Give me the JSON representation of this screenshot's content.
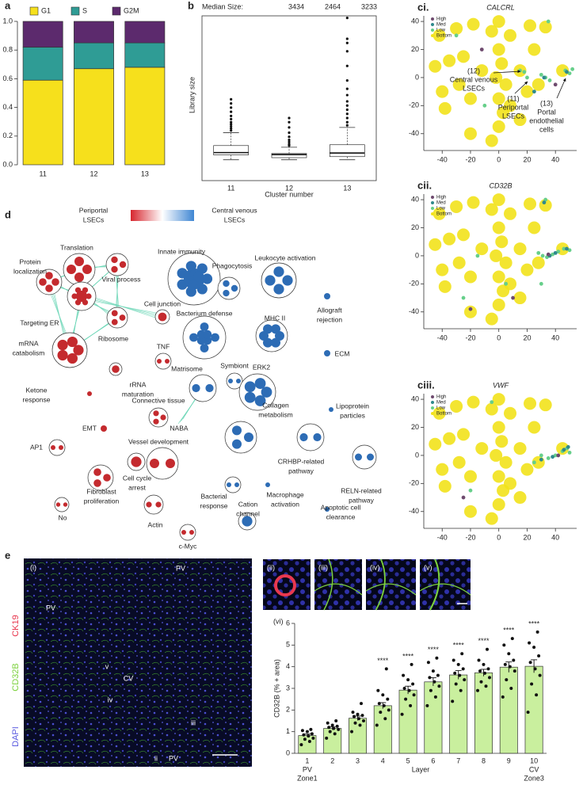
{
  "chart_data": [
    {
      "type": "stacked_bar",
      "panel_label": "a",
      "categories": [
        "11",
        "12",
        "13"
      ],
      "series": [
        {
          "name": "G1",
          "color": "#f6e01c",
          "values": [
            0.59,
            0.67,
            0.68
          ]
        },
        {
          "name": "S",
          "color": "#2f9c95",
          "values": [
            0.23,
            0.18,
            0.17
          ]
        },
        {
          "name": "G2M",
          "color": "#5c2a6d",
          "values": [
            0.18,
            0.15,
            0.15
          ]
        }
      ],
      "ylim": [
        0,
        1
      ],
      "yticks": [
        {
          "value": 0,
          "label": "0.0"
        },
        {
          "value": 0.2,
          "label": "0.2"
        },
        {
          "value": 0.4,
          "label": "0.4"
        },
        {
          "value": 0.6,
          "label": "0.6"
        },
        {
          "value": 0.8,
          "label": "0.8"
        },
        {
          "value": 1,
          "label": "1.0"
        }
      ]
    },
    {
      "type": "box",
      "panel_label": "b",
      "title": "Median Size:",
      "categories": [
        "11",
        "12",
        "13"
      ],
      "medians": [
        3434,
        2464,
        3233
      ],
      "q1": [
        2300,
        1000,
        1500
      ],
      "q3": [
        6800,
        3000,
        7200
      ],
      "whisker_low": [
        0,
        0,
        0
      ],
      "whisker_high": [
        13000,
        6000,
        15500
      ],
      "outliers": [
        [
          14000,
          15000,
          16000,
          17000,
          18000,
          19500,
          21000,
          23000,
          25000,
          27000,
          29000
        ],
        [
          6800,
          7500,
          8500,
          9500,
          11000,
          13000,
          15500,
          18000,
          20000
        ],
        [
          16500,
          18000,
          20000,
          22000,
          24000,
          26000,
          28000,
          31000,
          34000,
          38000,
          45000,
          52000,
          56000,
          58000,
          68000
        ]
      ],
      "ylim": [
        -10000,
        69000
      ],
      "x_label": "Cluster number",
      "y_label": "Library size"
    },
    {
      "type": "scatter",
      "panel_label": "ci.",
      "title": "CALCRL",
      "xlim": [
        -53,
        55
      ],
      "ylim": [
        -52,
        44
      ],
      "xticks": [
        -40,
        -20,
        0,
        20,
        40
      ],
      "yticks": [
        -40,
        -20,
        0,
        20,
        40
      ],
      "series": [
        {
          "name": "High",
          "color": "#6e4a6e",
          "x": [
            -12,
            40
          ],
          "y": [
            20,
            -5
          ]
        },
        {
          "name": "Med",
          "color": "#2f8a8c",
          "x": [
            32,
            48,
            25
          ],
          "y": [
            0,
            4,
            -10
          ]
        },
        {
          "name": "Low",
          "color": "#66cf8a",
          "x": [
            15,
            18,
            30,
            33,
            36,
            47,
            50,
            52,
            -30,
            -10,
            35,
            20
          ],
          "y": [
            5,
            4,
            2,
            0,
            -2,
            5,
            3,
            6,
            30,
            -20,
            40,
            0
          ]
        },
        {
          "name": "Bottom",
          "color": "#f2e21b",
          "x": [
            -42,
            -30,
            -18,
            -5,
            8,
            22,
            33,
            -45,
            -35,
            -25,
            -12,
            -28,
            -40,
            -20,
            0,
            0,
            2,
            -2,
            5,
            0,
            3,
            0,
            -5,
            8,
            15,
            20,
            15,
            28,
            25,
            45,
            -38,
            -20
          ],
          "y": [
            30,
            35,
            38,
            33,
            30,
            37,
            36,
            8,
            12,
            15,
            5,
            -5,
            -10,
            -15,
            40,
            20,
            10,
            0,
            -5,
            -15,
            -25,
            -35,
            -45,
            -20,
            -30,
            -10,
            5,
            -5,
            20,
            5,
            -22,
            -40
          ]
        }
      ],
      "annotations": [
        [
          "(12)",
          "Central venous",
          "LSECs"
        ],
        [
          "(11)",
          "Periportal",
          "LSECs"
        ],
        [
          "(13)",
          "Portal",
          "endothelial",
          "cells"
        ]
      ]
    },
    {
      "type": "scatter",
      "panel_label": "cii.",
      "title": "CD32B",
      "xlim": [
        -53,
        55
      ],
      "ylim": [
        -52,
        44
      ],
      "xticks": [
        -40,
        -20,
        0,
        20,
        40
      ],
      "yticks": [
        -40,
        -20,
        0,
        20,
        40
      ],
      "series": [
        {
          "name": "High",
          "color": "#6e4a6e",
          "x": [
            35,
            -20,
            10
          ],
          "y": [
            1,
            -38,
            -30
          ]
        },
        {
          "name": "Med",
          "color": "#2f8a8c",
          "x": [
            36,
            40,
            48,
            32
          ],
          "y": [
            0,
            2,
            5,
            38
          ]
        },
        {
          "name": "Low",
          "color": "#66cf8a",
          "x": [
            28,
            31,
            34,
            38,
            42,
            46,
            50,
            33,
            -25,
            -15,
            5,
            30
          ],
          "y": [
            2,
            0,
            -1,
            1,
            3,
            5,
            4,
            40,
            -30,
            0,
            -20,
            -20
          ]
        },
        {
          "name": "Bottom",
          "color": "#f2e21b",
          "x": [
            -42,
            -30,
            -18,
            -5,
            8,
            22,
            33,
            -45,
            -35,
            -25,
            -12,
            -28,
            -40,
            -20,
            0,
            0,
            2,
            -2,
            5,
            0,
            3,
            0,
            -5,
            8,
            15,
            20,
            15,
            28,
            25,
            45,
            -38,
            -20
          ],
          "y": [
            30,
            35,
            38,
            33,
            30,
            37,
            36,
            8,
            12,
            15,
            5,
            -5,
            -10,
            -15,
            40,
            20,
            10,
            0,
            -5,
            -15,
            -25,
            -35,
            -45,
            -20,
            -30,
            -10,
            5,
            -5,
            20,
            5,
            -22,
            -40
          ]
        }
      ]
    },
    {
      "type": "scatter",
      "panel_label": "ciii.",
      "title": "VWF",
      "xlim": [
        -53,
        55
      ],
      "ylim": [
        -52,
        44
      ],
      "xticks": [
        -40,
        -20,
        0,
        20,
        40
      ],
      "yticks": [
        -40,
        -20,
        0,
        20,
        40
      ],
      "series": [
        {
          "name": "High",
          "color": "#6e4a6e",
          "x": [
            42,
            -25
          ],
          "y": [
            0,
            -30
          ]
        },
        {
          "name": "Med",
          "color": "#2f8a8c",
          "x": [
            38,
            46,
            49,
            30
          ],
          "y": [
            -1,
            4,
            6,
            -3
          ]
        },
        {
          "name": "Low",
          "color": "#66cf8a",
          "x": [
            30,
            35,
            40,
            45,
            48,
            50,
            25,
            -5,
            -20
          ],
          "y": [
            0,
            -2,
            0,
            3,
            5,
            2,
            -5,
            38,
            -25
          ]
        },
        {
          "name": "Bottom",
          "color": "#f2e21b",
          "x": [
            -42,
            -30,
            -18,
            -5,
            8,
            22,
            33,
            -45,
            -35,
            -25,
            -12,
            -28,
            -40,
            -20,
            0,
            0,
            2,
            -2,
            5,
            0,
            3,
            0,
            -5,
            8,
            15,
            20,
            15,
            28,
            25,
            45,
            -38,
            -20
          ],
          "y": [
            30,
            35,
            38,
            33,
            30,
            37,
            36,
            8,
            12,
            15,
            5,
            -5,
            -10,
            -15,
            40,
            20,
            10,
            0,
            -5,
            -15,
            -25,
            -35,
            -45,
            -20,
            -30,
            -10,
            5,
            -5,
            20,
            5,
            -22,
            -40
          ]
        }
      ]
    },
    {
      "type": "bar",
      "panel_label": "(vi)",
      "categories": [
        "1",
        "2",
        "3",
        "4",
        "5",
        "6",
        "7",
        "8",
        "9",
        "10"
      ],
      "values": [
        0.82,
        1.15,
        1.62,
        2.2,
        2.92,
        3.3,
        3.62,
        3.72,
        3.98,
        4.02
      ],
      "errors": [
        0.07,
        0.07,
        0.1,
        0.14,
        0.18,
        0.19,
        0.2,
        0.16,
        0.24,
        0.3
      ],
      "points": [
        [
          0.4,
          0.55,
          0.65,
          0.7,
          0.8,
          0.85,
          0.9,
          1.0,
          1.05,
          1.1
        ],
        [
          0.7,
          0.9,
          1.0,
          1.1,
          1.15,
          1.2,
          1.25,
          1.3,
          1.4,
          1.5
        ],
        [
          1.0,
          1.3,
          1.4,
          1.5,
          1.6,
          1.7,
          1.75,
          1.8,
          1.9,
          2.3
        ],
        [
          1.3,
          1.6,
          1.9,
          2.0,
          2.2,
          2.3,
          2.5,
          2.7,
          2.9,
          3.9
        ],
        [
          1.8,
          2.2,
          2.5,
          2.7,
          2.9,
          3.0,
          3.2,
          3.4,
          3.6,
          4.1
        ],
        [
          2.2,
          2.6,
          2.9,
          3.1,
          3.3,
          3.5,
          3.6,
          3.8,
          4.2,
          4.4
        ],
        [
          2.4,
          2.9,
          3.2,
          3.4,
          3.6,
          3.7,
          3.9,
          4.1,
          4.3,
          4.6
        ],
        [
          2.9,
          3.1,
          3.3,
          3.5,
          3.7,
          3.8,
          3.9,
          4.1,
          4.3,
          4.8
        ],
        [
          2.6,
          3.0,
          3.4,
          3.8,
          4.0,
          4.1,
          4.3,
          4.6,
          5.0,
          5.3
        ],
        [
          1.9,
          2.7,
          3.2,
          3.6,
          3.9,
          4.2,
          4.5,
          4.9,
          5.1,
          5.6
        ]
      ],
      "significance": [
        null,
        null,
        null,
        "****",
        "****",
        "****",
        "****",
        "****",
        "****",
        "****"
      ],
      "color": "#c9ef9e",
      "ylim": [
        0,
        6
      ],
      "yticks": [
        0,
        1,
        2,
        3,
        4,
        5,
        6
      ],
      "y_label": "CD32B (% + area)",
      "x_label": "Layer",
      "x_ends": [
        [
          "PV",
          "Zone1"
        ],
        [
          "CV",
          "Zone3"
        ]
      ]
    }
  ],
  "network": {
    "panel_label": "d",
    "legend": {
      "low_label": [
        "Periportal",
        "LSECs"
      ],
      "high_label": [
        "Central venous",
        "LSECs"
      ],
      "low_color": "#d7262e",
      "high_color": "#3f86d3"
    },
    "nodes": [
      {
        "label": [
          "Translation"
        ],
        "color": "#c42a2e"
      },
      {
        "label": [
          "Protein",
          "localization"
        ],
        "color": "#c42a2e"
      },
      {
        "label": [
          "Viral process"
        ],
        "color": "#c42a2e"
      },
      {
        "label": [
          "Cell junction"
        ],
        "color": "#c42a2e"
      },
      {
        "label": [
          "Targeting ER"
        ],
        "color": "#c42a2e"
      },
      {
        "label": [
          "Ribosome"
        ],
        "color": "#c42a2e"
      },
      {
        "label": [
          "mRNA",
          "catabolism"
        ],
        "color": "#c42a2e"
      },
      {
        "label": [
          "TNF"
        ],
        "color": "#c42a2e"
      },
      {
        "label": [
          "rRNA",
          "maturation"
        ],
        "color": "#c42a2e"
      },
      {
        "label": [
          "Innate immunity"
        ],
        "color": "#2d6cb5"
      },
      {
        "label": [
          "Phagocytosis"
        ],
        "color": "#2d6cb5"
      },
      {
        "label": [
          "Leukocyte activation"
        ],
        "color": "#2d6cb5"
      },
      {
        "label": [
          "Allograft",
          "rejection"
        ],
        "color": "#2d6cb5"
      },
      {
        "label": [
          "Bacterium defense"
        ],
        "color": "#2d6cb5"
      },
      {
        "label": [
          "MHC II"
        ],
        "color": "#2d6cb5"
      },
      {
        "label": [
          "ECM"
        ],
        "color": "#2d6cb5"
      },
      {
        "label": [
          "Matrisome"
        ],
        "color": "#2d6cb5"
      },
      {
        "label": [
          "Symbiont"
        ],
        "color": "#2d6cb5"
      },
      {
        "label": [
          "ERK2"
        ],
        "color": "#2d6cb5"
      },
      {
        "label": [
          "Ketone",
          "response"
        ],
        "color": "#c42a2e"
      },
      {
        "label": [
          "Connective tissue"
        ],
        "color": "#c42a2e"
      },
      {
        "label": [
          "EMT"
        ],
        "color": "#c42a2e"
      },
      {
        "label": [
          "NABA"
        ]
      },
      {
        "label": [
          "Collagen",
          "metabolism"
        ],
        "color": "#2d6cb5"
      },
      {
        "label": [
          "Lipoprotein",
          "particles"
        ],
        "color": "#2d6cb5"
      },
      {
        "label": [
          "Vessel development"
        ],
        "color": "#c42a2e"
      },
      {
        "label": [
          "CRHBP-related",
          "pathway"
        ],
        "color": "#2d6cb5"
      },
      {
        "label": [
          "RELN-related",
          "pathway"
        ],
        "color": "#2d6cb5"
      },
      {
        "label": [
          "AP1"
        ],
        "color": "#c42a2e"
      },
      {
        "label": [
          "Cell cycle",
          "arrest"
        ],
        "color": "#c42a2e"
      },
      {
        "label": [
          "Fibroblast",
          "proliferation"
        ],
        "color": "#c42a2e"
      },
      {
        "label": [
          "Bacterial",
          "response"
        ],
        "color": "#2d6cb5"
      },
      {
        "label": [
          "Macrophage",
          "activation"
        ],
        "color": "#2d6cb5"
      },
      {
        "label": [
          "No"
        ],
        "color": "#c42a2e"
      },
      {
        "label": [
          "Actin"
        ],
        "color": "#c42a2e"
      },
      {
        "label": [
          "c-Myc"
        ],
        "color": "#c42a2e"
      },
      {
        "label": [
          "Cation",
          "channel"
        ],
        "color": "#2d6cb5"
      },
      {
        "label": [
          "Apoptotic cell",
          "clearance"
        ],
        "color": "#2d6cb5"
      }
    ]
  },
  "microscopy": {
    "panel_label": "e",
    "main_label": "(i)",
    "annotations": [
      "PV",
      "PV",
      "v",
      "CV",
      "iv",
      "iii",
      "PV",
      "ii"
    ],
    "channels": [
      {
        "name": "CK19",
        "color": "#e8384f"
      },
      {
        "name": "CD32B",
        "color": "#7cd13d"
      },
      {
        "name": "DAPI",
        "color": "#5a5be0"
      }
    ],
    "insets": [
      "(ii)",
      "(iii)",
      "(iv)",
      "(v)"
    ]
  }
}
